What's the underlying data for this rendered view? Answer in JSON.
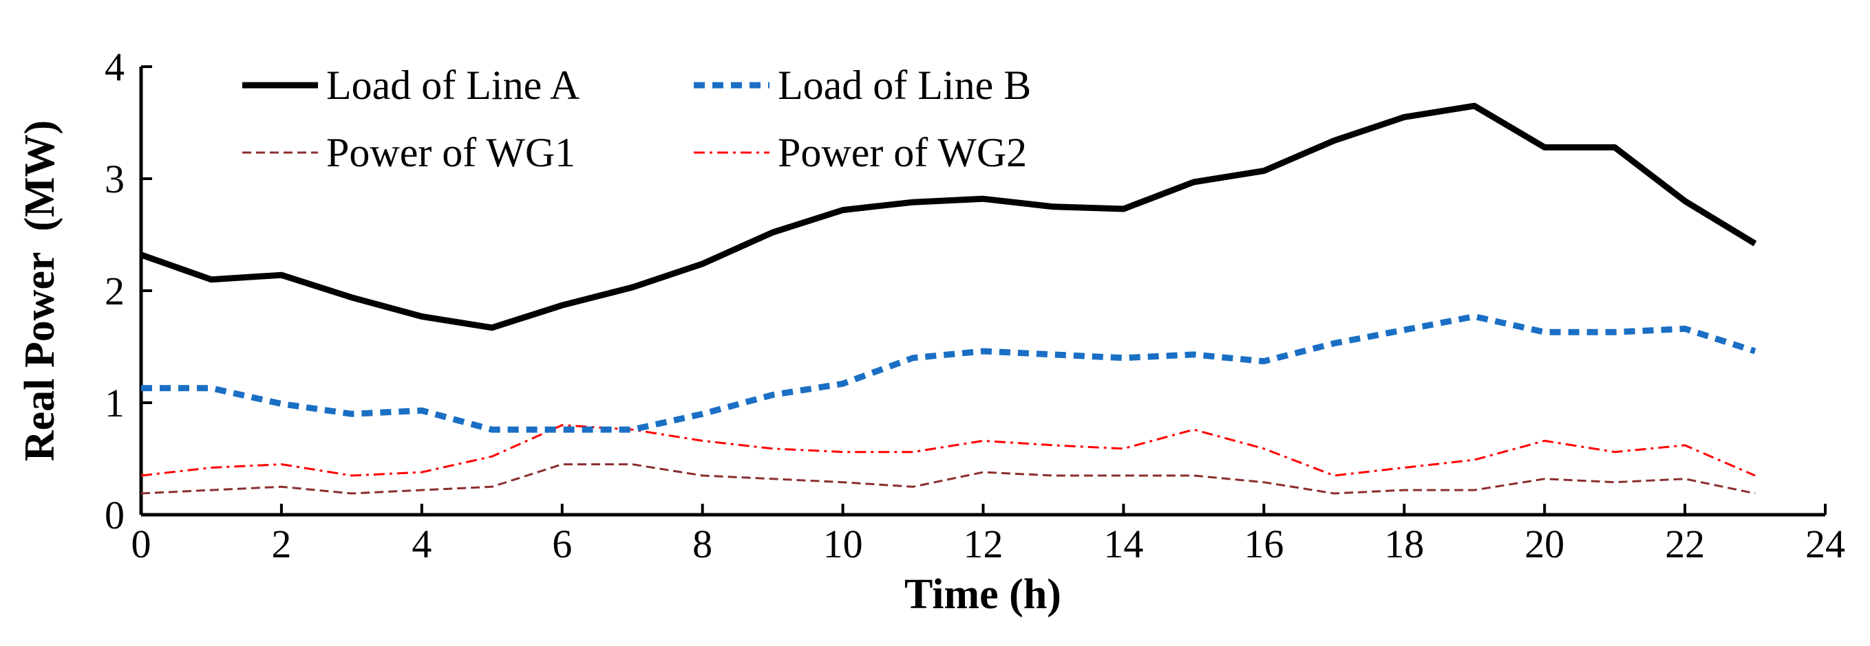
{
  "chart_data": {
    "type": "line",
    "title": "",
    "xlabel": "Time (h)",
    "ylabel": "Real Power  (MW)",
    "xlim": [
      0,
      24
    ],
    "ylim": [
      0,
      4
    ],
    "xticks": [
      "0",
      "2",
      "4",
      "6",
      "8",
      "10",
      "12",
      "14",
      "16",
      "18",
      "20",
      "22",
      "24"
    ],
    "yticks": [
      "0",
      "1",
      "2",
      "3",
      "4"
    ],
    "grid": false,
    "legend_position": "top-left",
    "x": [
      0,
      1,
      2,
      3,
      4,
      5,
      6,
      7,
      8,
      9,
      10,
      11,
      12,
      13,
      14,
      15,
      16,
      17,
      18,
      19,
      20,
      21,
      22,
      23
    ],
    "series": [
      {
        "name": "Load of Line A",
        "color": "#000000",
        "style": "solid-thick",
        "values": [
          2.32,
          2.1,
          2.14,
          1.94,
          1.77,
          1.67,
          1.87,
          2.03,
          2.24,
          2.52,
          2.72,
          2.79,
          2.82,
          2.75,
          2.73,
          2.97,
          3.07,
          3.34,
          3.55,
          3.65,
          3.28,
          3.28,
          2.8,
          2.42
        ]
      },
      {
        "name": "Load of Line B",
        "color": "#1a6fc4",
        "style": "dashed-thick",
        "values": [
          1.13,
          1.13,
          0.99,
          0.9,
          0.93,
          0.76,
          0.76,
          0.76,
          0.9,
          1.07,
          1.17,
          1.4,
          1.46,
          1.43,
          1.4,
          1.43,
          1.37,
          1.53,
          1.65,
          1.77,
          1.63,
          1.63,
          1.66,
          1.46
        ]
      },
      {
        "name": "Power of WG1",
        "color": "#8b2d2d",
        "style": "dashed-thin",
        "values": [
          0.19,
          0.22,
          0.25,
          0.19,
          0.22,
          0.25,
          0.45,
          0.45,
          0.35,
          0.32,
          0.29,
          0.25,
          0.38,
          0.35,
          0.35,
          0.35,
          0.29,
          0.19,
          0.22,
          0.22,
          0.32,
          0.29,
          0.32,
          0.19
        ]
      },
      {
        "name": "Power of WG2",
        "color": "#ff0000",
        "style": "dashdot-thin",
        "values": [
          0.35,
          0.42,
          0.45,
          0.35,
          0.38,
          0.52,
          0.8,
          0.76,
          0.66,
          0.59,
          0.56,
          0.56,
          0.66,
          0.62,
          0.59,
          0.76,
          0.59,
          0.35,
          0.42,
          0.49,
          0.66,
          0.56,
          0.62,
          0.35
        ]
      }
    ]
  }
}
